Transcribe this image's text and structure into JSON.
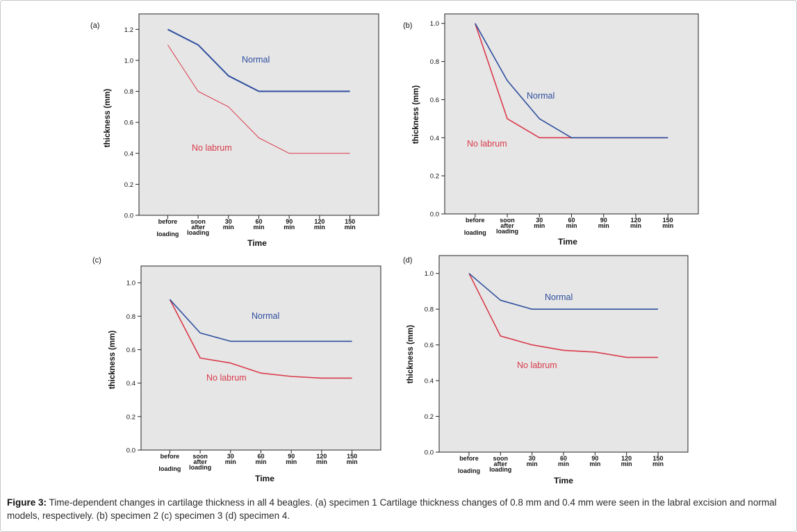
{
  "caption": {
    "label": "Figure 3:",
    "text": " Time-dependent changes in cartilage thickness in all 4 beagles.  (a) specimen 1 Cartilage thickness changes of 0.8 mm and 0.4 mm were seen in the labral excision and normal models, respectively.  (b) specimen 2  (c) specimen 3  (d) specimen 4."
  },
  "colors": {
    "normal": "#2e4e9e",
    "no_labrum": "#d93a4a",
    "plot_bg": "#e6e6e6"
  },
  "chart_data": [
    {
      "type": "line",
      "panel_label": "(a)",
      "categories": [
        [
          "before",
          "loading"
        ],
        [
          "soon",
          "after",
          "loading"
        ],
        [
          "30",
          "min"
        ],
        [
          "60",
          "min"
        ],
        [
          "90",
          "min"
        ],
        [
          "120",
          "min"
        ],
        [
          "150",
          "min"
        ]
      ],
      "xlabel": "Time",
      "ylabel": "thickness (mm)",
      "ylim": [
        0,
        1.3
      ],
      "yticks": [
        "0.0",
        "0.2",
        "0.4",
        "0.6",
        "0.8",
        "1.0",
        "1.2"
      ],
      "series": [
        {
          "name": "Normal",
          "values": [
            1.2,
            1.1,
            0.9,
            0.8,
            0.8,
            0.8,
            0.8
          ]
        },
        {
          "name": "No labrum",
          "values": [
            1.1,
            0.8,
            0.7,
            0.5,
            0.4,
            0.4,
            0.4
          ]
        }
      ]
    },
    {
      "type": "line",
      "panel_label": "(b)",
      "categories": [
        [
          "before",
          "loading"
        ],
        [
          "soon",
          "after",
          "loading"
        ],
        [
          "30",
          "min"
        ],
        [
          "60",
          "min"
        ],
        [
          "90",
          "min"
        ],
        [
          "120",
          "min"
        ],
        [
          "150",
          "min"
        ]
      ],
      "xlabel": "Time",
      "ylabel": "thickness (mm)",
      "ylim": [
        0,
        1.05
      ],
      "yticks": [
        "0.0",
        "0.2",
        "0.4",
        "0.6",
        "0.8",
        "1.0"
      ],
      "series": [
        {
          "name": "Normal",
          "values": [
            1.0,
            0.7,
            0.5,
            0.4,
            0.4,
            0.4,
            0.4
          ]
        },
        {
          "name": "No labrum",
          "values": [
            1.0,
            0.5,
            0.4,
            0.4,
            0.4,
            0.4,
            0.4
          ]
        }
      ]
    },
    {
      "type": "line",
      "panel_label": "(c)",
      "categories": [
        [
          "before",
          "loading"
        ],
        [
          "soon",
          "after",
          "loading"
        ],
        [
          "30",
          "min"
        ],
        [
          "60",
          "min"
        ],
        [
          "90",
          "min"
        ],
        [
          "120",
          "min"
        ],
        [
          "150",
          "min"
        ]
      ],
      "xlabel": "Time",
      "ylabel": "thickness (mm)",
      "ylim": [
        0,
        1.1
      ],
      "yticks": [
        "0.0",
        "0.2",
        "0.4",
        "0.6",
        "0.8",
        "1.0"
      ],
      "series": [
        {
          "name": "Normal",
          "values": [
            0.9,
            0.7,
            0.65,
            0.65,
            0.65,
            0.65,
            0.65
          ]
        },
        {
          "name": "No labrum",
          "values": [
            0.9,
            0.55,
            0.52,
            0.46,
            0.44,
            0.43,
            0.43
          ]
        }
      ]
    },
    {
      "type": "line",
      "panel_label": "(d)",
      "categories": [
        [
          "before",
          "loading"
        ],
        [
          "soon",
          "after",
          "loading"
        ],
        [
          "30",
          "min"
        ],
        [
          "60",
          "min"
        ],
        [
          "90",
          "min"
        ],
        [
          "120",
          "min"
        ],
        [
          "150",
          "min"
        ]
      ],
      "xlabel": "Time",
      "ylabel": "thickness (mm)",
      "ylim": [
        0,
        1.1
      ],
      "yticks": [
        "0.0",
        "0.2",
        "0.4",
        "0.6",
        "0.8",
        "1.0"
      ],
      "series": [
        {
          "name": "Normal",
          "values": [
            1.0,
            0.85,
            0.8,
            0.8,
            0.8,
            0.8,
            0.8
          ]
        },
        {
          "name": "No labrum",
          "values": [
            1.0,
            0.65,
            0.6,
            0.57,
            0.56,
            0.53,
            0.53
          ]
        }
      ]
    }
  ]
}
